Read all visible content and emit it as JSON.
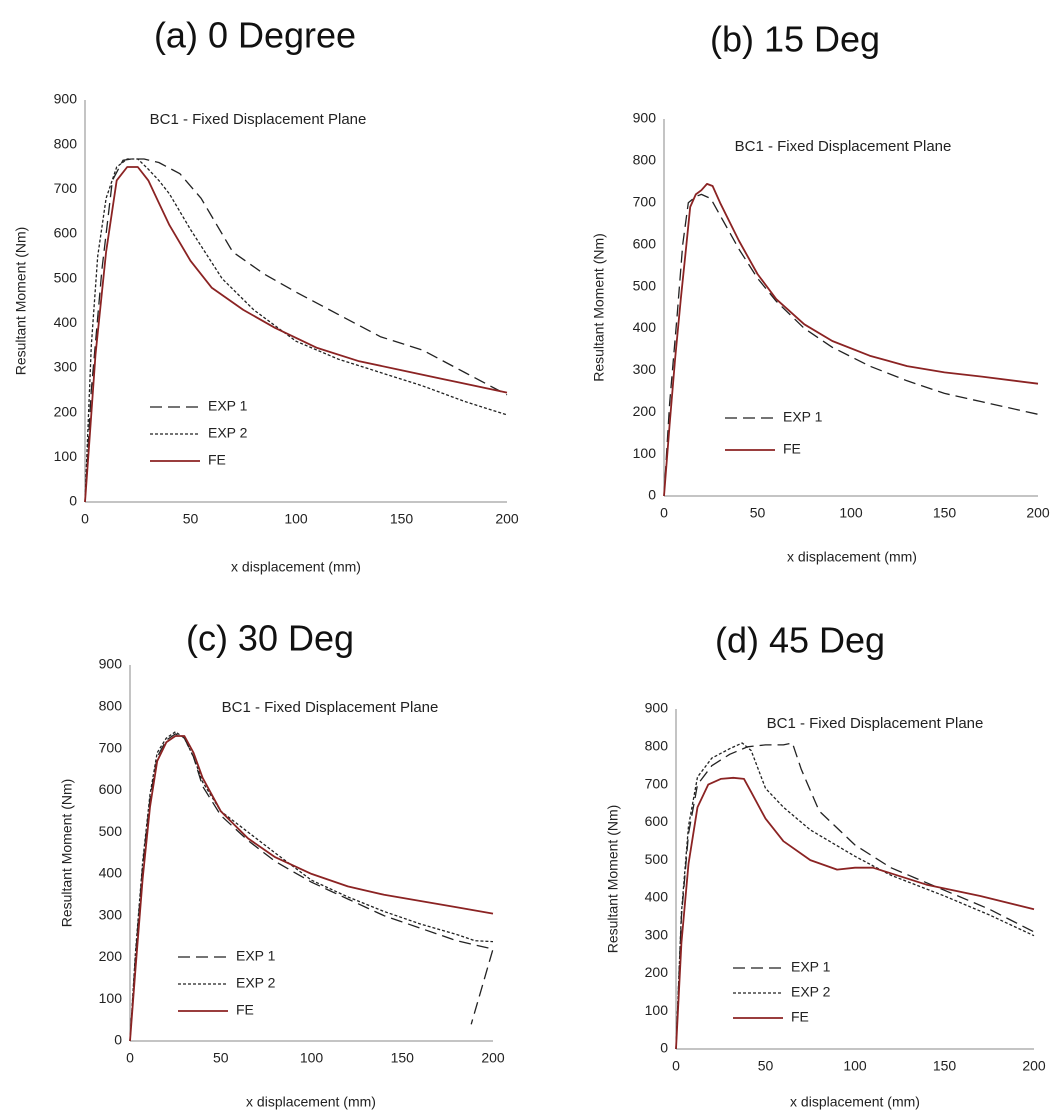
{
  "chart_data": [
    {
      "type": "line",
      "panel_title": "(a)  0 Degree",
      "title": "BC1 - Fixed Displacement Plane",
      "xlabel": "x displacement (mm)",
      "ylabel": "Resultant Moment  (Nm)",
      "xlim": [
        0,
        200
      ],
      "ylim": [
        0,
        900
      ],
      "xticks": [
        0,
        50,
        100,
        150,
        200
      ],
      "yticks": [
        0,
        100,
        200,
        300,
        400,
        500,
        600,
        700,
        800,
        900
      ],
      "grid": false,
      "legend": "bottom-left",
      "series": [
        {
          "name": "EXP 1",
          "style": "dashed",
          "color": "#222222",
          "x": [
            0,
            3,
            8,
            13,
            18,
            22,
            28,
            35,
            45,
            55,
            70,
            85,
            100,
            120,
            140,
            160,
            180,
            200
          ],
          "y": [
            0,
            250,
            520,
            720,
            765,
            768,
            768,
            760,
            735,
            680,
            560,
            510,
            470,
            420,
            370,
            340,
            290,
            240
          ]
        },
        {
          "name": "EXP 2",
          "style": "dotted",
          "color": "#222222",
          "x": [
            0,
            3,
            6,
            10,
            15,
            20,
            25,
            30,
            35,
            40,
            50,
            65,
            80,
            100,
            120,
            140,
            160,
            180,
            200
          ],
          "y": [
            0,
            350,
            550,
            680,
            750,
            768,
            768,
            745,
            720,
            690,
            610,
            500,
            430,
            360,
            320,
            290,
            260,
            225,
            195
          ]
        },
        {
          "name": "FE",
          "style": "solid",
          "color": "#8b2323",
          "x": [
            0,
            2,
            5,
            10,
            15,
            20,
            25,
            30,
            35,
            40,
            50,
            60,
            75,
            90,
            110,
            130,
            150,
            170,
            200
          ],
          "y": [
            0,
            130,
            330,
            560,
            720,
            750,
            750,
            720,
            670,
            620,
            540,
            480,
            430,
            390,
            345,
            315,
            295,
            275,
            245
          ]
        }
      ]
    },
    {
      "type": "line",
      "panel_title": "(b) 15 Deg",
      "title": "BC1 - Fixed Displacement Plane",
      "xlabel": "x displacement (mm)",
      "ylabel": "Resultant Moment  (Nm)",
      "xlim": [
        0,
        200
      ],
      "ylim": [
        0,
        900
      ],
      "xticks": [
        0,
        50,
        100,
        150,
        200
      ],
      "yticks": [
        0,
        100,
        200,
        300,
        400,
        500,
        600,
        700,
        800,
        900
      ],
      "grid": false,
      "legend": "bottom-left",
      "series": [
        {
          "name": "EXP 1",
          "style": "dashed",
          "color": "#222222",
          "x": [
            0,
            3,
            7,
            10,
            13,
            17,
            20,
            25,
            30,
            40,
            50,
            60,
            75,
            90,
            110,
            130,
            150,
            170,
            200
          ],
          "y": [
            0,
            220,
            430,
            600,
            700,
            715,
            720,
            710,
            670,
            590,
            520,
            465,
            400,
            355,
            310,
            275,
            245,
            225,
            195
          ]
        },
        {
          "name": "FE",
          "style": "solid",
          "color": "#8b2323",
          "x": [
            0,
            3,
            6,
            9,
            12,
            14,
            17,
            20,
            23,
            26,
            30,
            40,
            50,
            60,
            75,
            90,
            110,
            130,
            150,
            170,
            200
          ],
          "y": [
            0,
            170,
            330,
            470,
            600,
            690,
            720,
            730,
            745,
            740,
            700,
            610,
            530,
            470,
            410,
            370,
            335,
            310,
            295,
            285,
            268
          ]
        }
      ]
    },
    {
      "type": "line",
      "panel_title": "(c) 30 Deg",
      "title": "BC1 - Fixed Displacement Plane",
      "xlabel": "x displacement (mm)",
      "ylabel": "Resultant Moment  (Nm)",
      "xlim": [
        0,
        200
      ],
      "ylim": [
        0,
        900
      ],
      "xticks": [
        0,
        50,
        100,
        150,
        200
      ],
      "yticks": [
        0,
        100,
        200,
        300,
        400,
        500,
        600,
        700,
        800,
        900
      ],
      "grid": false,
      "legend": "bottom-left",
      "series": [
        {
          "name": "EXP 1",
          "style": "dashed",
          "color": "#222222",
          "x": [
            0,
            3,
            7,
            11,
            15,
            20,
            25,
            30,
            35,
            40,
            50,
            65,
            80,
            100,
            120,
            140,
            160,
            180,
            195,
            200,
            188
          ],
          "y": [
            0,
            200,
            420,
            580,
            680,
            720,
            735,
            725,
            680,
            610,
            540,
            480,
            430,
            380,
            340,
            300,
            270,
            240,
            225,
            220,
            40
          ]
        },
        {
          "name": "EXP 2",
          "style": "dotted",
          "color": "#222222",
          "x": [
            0,
            3,
            7,
            11,
            15,
            20,
            25,
            30,
            35,
            40,
            50,
            65,
            80,
            100,
            120,
            140,
            160,
            180,
            190,
            200
          ],
          "y": [
            0,
            210,
            430,
            590,
            690,
            725,
            740,
            725,
            680,
            620,
            550,
            500,
            450,
            385,
            345,
            310,
            280,
            255,
            240,
            238
          ]
        },
        {
          "name": "FE",
          "style": "solid",
          "color": "#8b2323",
          "x": [
            0,
            3,
            7,
            11,
            15,
            20,
            25,
            30,
            35,
            40,
            50,
            65,
            80,
            100,
            120,
            140,
            160,
            180,
            200
          ],
          "y": [
            0,
            170,
            390,
            560,
            670,
            715,
            730,
            730,
            690,
            630,
            550,
            485,
            440,
            400,
            370,
            350,
            335,
            320,
            305
          ]
        }
      ]
    },
    {
      "type": "line",
      "panel_title": "(d) 45 Deg",
      "title": "BC1 - Fixed Displacement Plane",
      "xlabel": "x displacement (mm)",
      "ylabel": "Resultant Moment  (Nm)",
      "xlim": [
        0,
        200
      ],
      "ylim": [
        0,
        900
      ],
      "xticks": [
        0,
        50,
        100,
        150,
        200
      ],
      "yticks": [
        0,
        100,
        200,
        300,
        400,
        500,
        600,
        700,
        800,
        900
      ],
      "grid": false,
      "legend": "bottom-left",
      "series": [
        {
          "name": "EXP 1",
          "style": "dashed",
          "color": "#222222",
          "x": [
            0,
            3,
            7,
            12,
            20,
            30,
            40,
            50,
            60,
            65,
            70,
            80,
            100,
            120,
            150,
            175,
            200
          ],
          "y": [
            0,
            350,
            570,
            700,
            750,
            780,
            800,
            805,
            805,
            810,
            740,
            630,
            540,
            480,
            420,
            370,
            310
          ]
        },
        {
          "name": "EXP 2",
          "style": "dotted",
          "color": "#222222",
          "x": [
            0,
            3,
            7,
            12,
            20,
            30,
            37,
            42,
            50,
            60,
            75,
            100,
            120,
            150,
            175,
            200
          ],
          "y": [
            0,
            360,
            590,
            720,
            770,
            795,
            810,
            790,
            690,
            640,
            580,
            510,
            460,
            405,
            355,
            300
          ]
        },
        {
          "name": "FE",
          "style": "solid",
          "color": "#8b2323",
          "x": [
            0,
            3,
            7,
            12,
            18,
            25,
            32,
            38,
            42,
            50,
            60,
            75,
            90,
            100,
            110,
            120,
            140,
            170,
            200
          ],
          "y": [
            0,
            280,
            490,
            640,
            700,
            715,
            718,
            715,
            680,
            610,
            550,
            500,
            475,
            480,
            480,
            465,
            435,
            405,
            370
          ]
        }
      ]
    }
  ]
}
